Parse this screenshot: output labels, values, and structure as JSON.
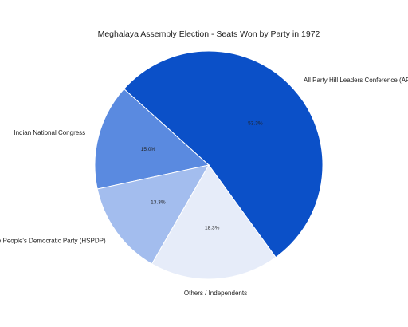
{
  "chart_data": {
    "type": "pie",
    "title": "Meghalaya Assembly Election - Seats Won by Party in 1972",
    "slices": [
      {
        "label": "All Party Hill Leaders Conference (APHLC)",
        "value": 53.3,
        "pct_label": "53.3%",
        "color": "#0b50c8"
      },
      {
        "label": "Indian National Congress",
        "value": 15.0,
        "pct_label": "15.0%",
        "color": "#5a8ae0"
      },
      {
        "label": "Hill State People's Democratic Party (HSPDP)",
        "value": 13.3,
        "pct_label": "13.3%",
        "color": "#a3bdee"
      },
      {
        "label": "Others / Independents",
        "value": 18.3,
        "pct_label": "18.3%",
        "color": "#e6ecf9"
      }
    ],
    "start_angle_deg": 54,
    "direction": "counterclockwise",
    "legend": "none"
  }
}
